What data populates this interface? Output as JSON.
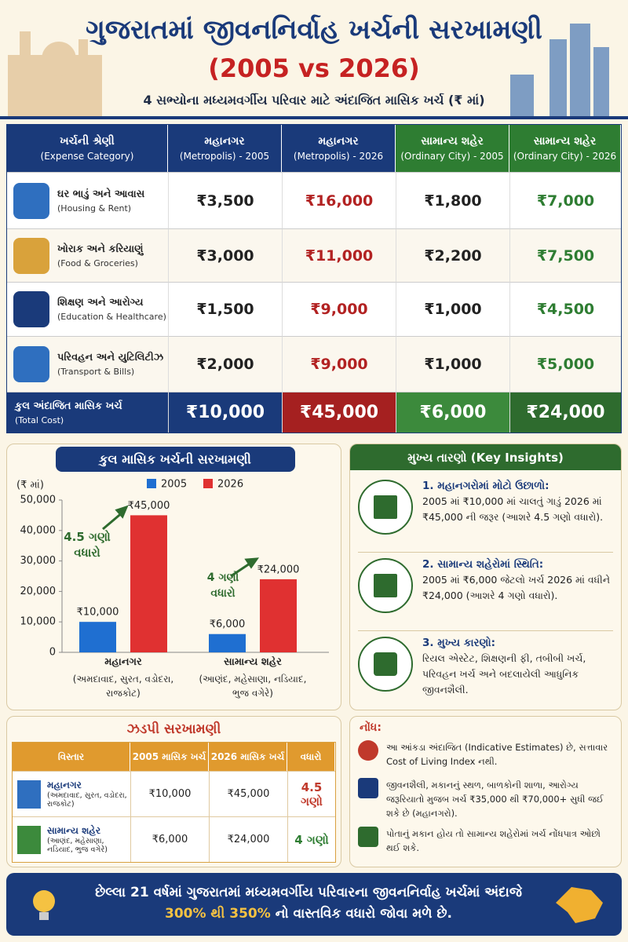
{
  "header": {
    "title": "ગુજરાતમાં જીવનનિર્વાહ ખર્ચની સરખામણી",
    "subtitle": "(2005 vs 2026)",
    "description": "4 સભ્યોના મધ્યમવર્ગીય પરિવાર માટે અંદાજિત માસિક ખર્ચ (₹ માં)"
  },
  "table": {
    "headers": [
      [
        "ખર્ચની શ્રેણી",
        "(Expense Category)"
      ],
      [
        "મહાનગર",
        "(Metropolis) - 2005"
      ],
      [
        "મહાનગર",
        "(Metropolis) - 2026"
      ],
      [
        "સામાન્ય શહેર",
        "(Ordinary City) - 2005"
      ],
      [
        "સામાન્ય શહેર",
        "(Ordinary City) - 2026"
      ]
    ],
    "rows": [
      {
        "label": "ઘર ભાડું અને આવાસ",
        "label_en": "(Housing & Rent)",
        "values": [
          "₹3,500",
          "₹16,000",
          "₹1,800",
          "₹7,000"
        ]
      },
      {
        "label": "ખોરાક અને કરિયાણું",
        "label_en": "(Food & Groceries)",
        "values": [
          "₹3,000",
          "₹11,000",
          "₹2,200",
          "₹7,500"
        ]
      },
      {
        "label": "શિક્ષણ અને આરોગ્ય",
        "label_en": "(Education & Healthcare)",
        "values": [
          "₹1,500",
          "₹9,000",
          "₹1,000",
          "₹4,500"
        ]
      },
      {
        "label": "પરિવહન અને યુટિલિટીઝ",
        "label_en": "(Transport & Bills)",
        "values": [
          "₹2,000",
          "₹9,000",
          "₹1,000",
          "₹5,000"
        ]
      }
    ],
    "total": {
      "label": "કુલ અંદાજિત માસિક ખર્ચ",
      "label_en": "(Total Cost)",
      "values": [
        "₹10,000",
        "₹45,000",
        "₹6,000",
        "₹24,000"
      ]
    }
  },
  "chart_data": {
    "type": "bar",
    "title": "કુલ માસિક ખર્ચની સરખામણી",
    "y_label": "(₹ માં)",
    "categories": [
      "મહાનગર",
      "સામાન્ય શહેર"
    ],
    "category_details": [
      "(અમદાવાદ, સુરત, વડોદરા, રાજકોટ)",
      "(આણંદ, મહેસાણા, નડિયાદ, ભુજ વગેરે)"
    ],
    "series": [
      {
        "name": "2005",
        "color": "#1f6fd1",
        "values": [
          10000,
          6000
        ],
        "value_labels": [
          "₹10,000",
          "₹6,000"
        ]
      },
      {
        "name": "2026",
        "color": "#e03131",
        "values": [
          45000,
          24000
        ],
        "value_labels": [
          "₹45,000",
          "₹24,000"
        ]
      }
    ],
    "ylim": [
      0,
      50000
    ],
    "yticks": [
      0,
      {
        "value": 10000,
        "label": "10,000"
      },
      {
        "value": 20000,
        "label": "20,000"
      },
      {
        "value": 30000,
        "label": "30,000"
      },
      {
        "value": 40000,
        "label": "40,000"
      },
      {
        "value": 50000,
        "label": "50,000"
      }
    ],
    "grid": false,
    "annotations": [
      "4.5 ગણો વધારો",
      "4 ગણો વધારો"
    ]
  },
  "insights": {
    "title": "મુખ્ય તારણો (Key Insights)",
    "items": [
      {
        "heading": "1. મહાનગરોમાં મોટો ઉછાળો:",
        "text": "2005 માં ₹10,000 માં ચાલતું ગાડું 2026 માં ₹45,000 ની જરૂર (આશરે 4.5 ગણો વધારો)."
      },
      {
        "heading": "2. સામાન્ય શહેરોમાં સ્થિતિ:",
        "text": "2005 માં ₹6,000 જેટલો ખર્ચ 2026 માં વધીને ₹24,000 (આશરે 4 ગણો વધારો)."
      },
      {
        "heading": "3. મુખ્ય કારણો:",
        "text": "રિયલ એસ્ટેટ, શિક્ષણની ફી, તબીબી ખર્ચ, પરિવહન ખર્ચ અને બદલાયેલી આધુનિક જીવનશૈલી."
      }
    ]
  },
  "quick_compare": {
    "title": "ઝડપી સરખામણી",
    "headers": [
      "વિસ્તાર",
      "2005 માસિક ખર્ચ",
      "2026 માસિક ખર્ચ",
      "વધારો"
    ],
    "rows": [
      {
        "area": "મહાનગર",
        "cities": "(અમદાવાદ, સુરત, વડોદરા, રાજકોટ)",
        "y2005": "₹10,000",
        "y2026": "₹45,000",
        "increase": "4.5 ગણો"
      },
      {
        "area": "સામાન્ય શહેર",
        "cities": "(આણંદ, મહેસાણા, નડિયાદ, ભુજ વગેરે)",
        "y2005": "₹6,000",
        "y2026": "₹24,000",
        "increase": "4 ગણો"
      }
    ]
  },
  "notes": {
    "title": "નોંધ:",
    "items": [
      "આ આંકડા અંદાજિત (Indicative Estimates) છે, સત્તાવાર Cost of Living Index નથી.",
      "જીવનશૈલી, મકાનનું સ્થળ, બાળકોની શાળા, આરોગ્ય જરૂરિયાતો મુજબ ખર્ચ ₹35,000 થી ₹70,000+ સુધી જઈ શકે છે (મહાનગરો).",
      "પોતાનું મકાન હોય તો સામાન્ય શહેરોમાં ખર્ચ નોંધપાત્ર ઓછો થઈ શકે."
    ]
  },
  "footer": {
    "text_before": "છેલ્લા 21 વર્ષમાં ગુજરાતમાં મધ્યમવર્ગીય પરિવારના જીવનનિર્વાહ ખર્ચમાં અંદાજે",
    "highlight": "300% થી 350%",
    "text_after": "નો વાસ્તવિક વધારો જોવા મળે છે."
  }
}
